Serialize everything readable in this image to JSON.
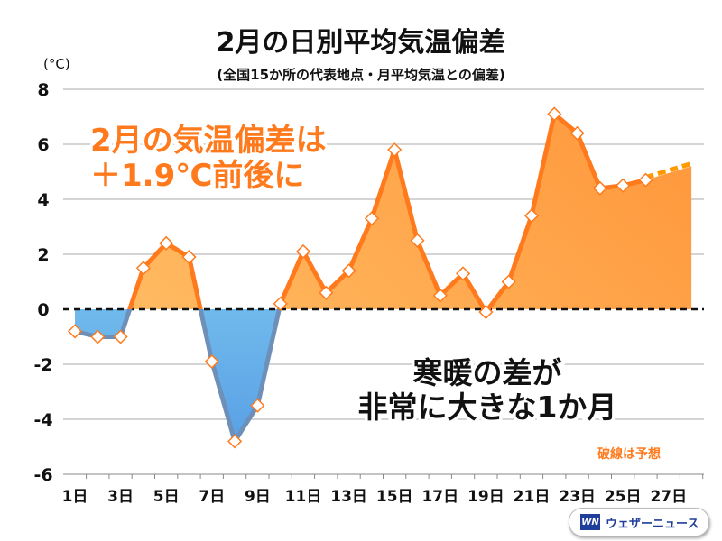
{
  "chart_data": {
    "type": "area",
    "title": "2月の日別平均気温偏差",
    "subtitle": "(全国15か所の代表地点・月平均気温との偏差)",
    "ylabel": "(°C)",
    "ylim": [
      -6,
      8
    ],
    "yticks": [
      "8",
      "6",
      "4",
      "2",
      "0",
      "-2",
      "-4",
      "-6"
    ],
    "xticks": [
      "1日",
      "3日",
      "5日",
      "7日",
      "9日",
      "11日",
      "13日",
      "15日",
      "17日",
      "19日",
      "21日",
      "23日",
      "25日",
      "27日"
    ],
    "grid": true,
    "x": [
      1,
      2,
      3,
      4,
      5,
      6,
      7,
      8,
      9,
      10,
      11,
      12,
      13,
      14,
      15,
      16,
      17,
      18,
      19,
      20,
      21,
      22,
      23,
      24,
      25,
      26
    ],
    "values": [
      -0.8,
      -1.0,
      -1.0,
      1.5,
      2.4,
      1.9,
      -1.9,
      -4.8,
      -3.5,
      0.2,
      2.1,
      0.6,
      1.4,
      3.3,
      5.8,
      2.5,
      0.5,
      1.3,
      -0.1,
      1.0,
      3.4,
      7.1,
      6.4,
      4.4,
      4.5,
      4.7
    ],
    "forecast": {
      "x": [
        26,
        27,
        28
      ],
      "values": [
        4.7,
        4.95,
        5.2
      ]
    },
    "colors": {
      "positive": "#ff7a1c",
      "positive_light": "#ffe08a",
      "negative": "#5aa0e6",
      "negative_light": "#8fe0f5",
      "line": "#ff7a1c",
      "forecast_line": "#ff9a00"
    }
  },
  "annotations": {
    "main_1": "2月の気温偏差は",
    "main_2": "＋1.9℃前後に",
    "note_1": "寒暖の差が",
    "note_2": "非常に大きな1か月",
    "forecast_note": "破線は予想"
  },
  "logo": {
    "mark": "WN",
    "name": "ウェザーニュース"
  }
}
